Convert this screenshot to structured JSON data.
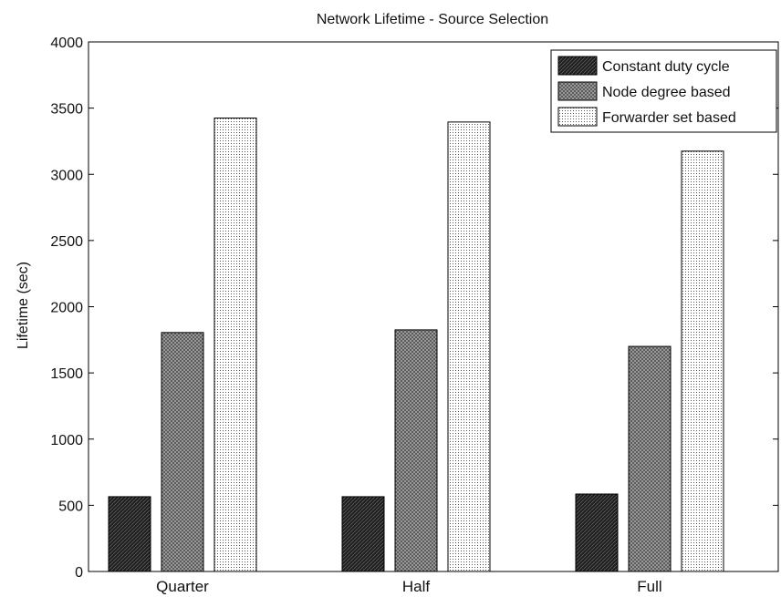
{
  "chart_data": {
    "type": "bar",
    "title": "Network Lifetime - Source Selection",
    "xlabel": "",
    "ylabel": "Lifetime (sec)",
    "categories": [
      "Quarter",
      "Half",
      "Full"
    ],
    "series": [
      {
        "name": "Constant duty cycle",
        "values": [
          565,
          565,
          585
        ]
      },
      {
        "name": "Node degree based",
        "values": [
          1805,
          1825,
          1700
        ]
      },
      {
        "name": "Forwarder set based",
        "values": [
          3425,
          3395,
          3175
        ]
      }
    ],
    "ylim": [
      0,
      4000
    ],
    "yticks": [
      0,
      500,
      1000,
      1500,
      2000,
      2500,
      3000,
      3500,
      4000
    ],
    "grid": false,
    "legend_position": "top-right",
    "colors": {
      "constant": "#1e1e1e",
      "node": "#5a5a5a",
      "forwarder": "#ffffff",
      "axis": "#000000"
    }
  }
}
